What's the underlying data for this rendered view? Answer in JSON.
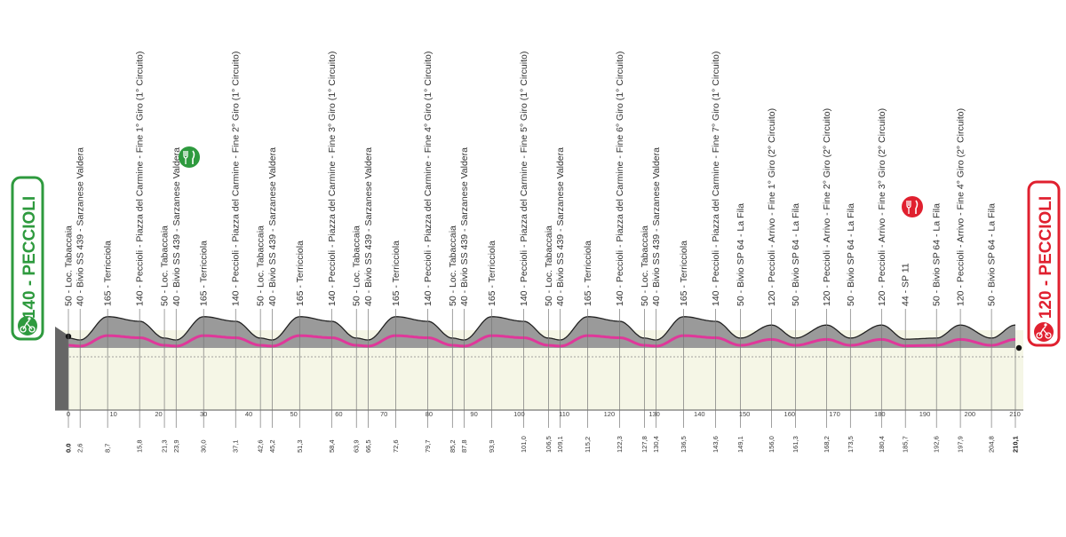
{
  "colors": {
    "start_badge": "#2e9a3e",
    "finish_badge": "#e0202f",
    "profile_fill": "#9a9a9a",
    "profile_dark": "#666666",
    "ground_fill": "#f5f6e6",
    "route_line": "#e0379a",
    "tick_line": "#777777"
  },
  "start": {
    "label": "140 - PECCIOLI",
    "icon": "cyclist-start-icon"
  },
  "finish": {
    "label": "120 - PECCIOLI",
    "icon": "cyclist-finish-icon"
  },
  "feed_zone": {
    "icon": "fork-knife-icon"
  },
  "chart_data": {
    "type": "area",
    "title": "",
    "xlabel": "",
    "ylabel": "",
    "xlim": [
      0,
      210.1
    ],
    "km_axis_ticks": [
      0,
      10,
      20,
      30,
      40,
      50,
      60,
      70,
      80,
      90,
      100,
      110,
      120,
      130,
      140,
      150,
      160,
      170,
      180,
      190,
      200,
      210
    ],
    "total_km_label": "210,1",
    "waypoints": [
      {
        "km": 0.0,
        "km_label": "0.0",
        "label": "50 - Loc. Tabaccaia"
      },
      {
        "km": 2.6,
        "km_label": "2,6",
        "label": "40 - Bivio SS 439 - Sarzanese Valdera"
      },
      {
        "km": 8.7,
        "km_label": "8,7",
        "label": "165 - Terricciola"
      },
      {
        "km": 15.8,
        "km_label": "15,8",
        "label": "140 - Peccioli - Piazza del Carmine - Fine 1° Giro (1° Circuito)"
      },
      {
        "km": 21.3,
        "km_label": "21,3",
        "label": "50 - Loc. Tabaccaia"
      },
      {
        "km": 23.9,
        "km_label": "23,9",
        "label": "40 - Bivio SS 439 - Sarzanese Valdera"
      },
      {
        "km": 30.0,
        "km_label": "30,0",
        "label": "165 - Terricciola"
      },
      {
        "km": 37.1,
        "km_label": "37,1",
        "label": "140 - Peccioli - Piazza del Carmine - Fine 2° Giro (1° Circuito)"
      },
      {
        "km": 42.6,
        "km_label": "42,6",
        "label": "50 - Loc. Tabaccaia"
      },
      {
        "km": 45.2,
        "km_label": "45,2",
        "label": "40 - Bivio SS 439 - Sarzanese Valdera"
      },
      {
        "km": 51.3,
        "km_label": "51,3",
        "label": "165 - Terricciola"
      },
      {
        "km": 58.4,
        "km_label": "58,4",
        "label": "140 - Peccioli - Piazza del Carmine - Fine 3° Giro (1° Circuito)"
      },
      {
        "km": 63.9,
        "km_label": "63,9",
        "label": "50 - Loc. Tabaccaia"
      },
      {
        "km": 66.5,
        "km_label": "66,5",
        "label": "40 - Bivio SS 439 - Sarzanese Valdera"
      },
      {
        "km": 72.6,
        "km_label": "72,6",
        "label": "165 - Terricciola"
      },
      {
        "km": 79.7,
        "km_label": "79,7",
        "label": "140 - Peccioli - Piazza del Carmine - Fine 4° Giro (1° Circuito)"
      },
      {
        "km": 85.2,
        "km_label": "85,2",
        "label": "50 - Loc. Tabaccaia"
      },
      {
        "km": 87.8,
        "km_label": "87,8",
        "label": "40 - Bivio SS 439 - Sarzanese Valdera"
      },
      {
        "km": 93.9,
        "km_label": "93,9",
        "label": "165 - Terricciola"
      },
      {
        "km": 101.0,
        "km_label": "101,0",
        "label": "140 - Peccioli - Piazza del Carmine - Fine 5° Giro (1° Circuito)"
      },
      {
        "km": 106.5,
        "km_label": "106,5",
        "label": "50 - Loc. Tabaccaia"
      },
      {
        "km": 109.1,
        "km_label": "109,1",
        "label": "40 - Bivio SS 439 - Sarzanese Valdera"
      },
      {
        "km": 115.2,
        "km_label": "115,2",
        "label": "165 - Terricciola"
      },
      {
        "km": 122.3,
        "km_label": "122,3",
        "label": "140 - Peccioli - Piazza del Carmine - Fine 6° Giro (1° Circuito)"
      },
      {
        "km": 127.8,
        "km_label": "127,8",
        "label": "50 - Loc. Tabaccaia"
      },
      {
        "km": 130.4,
        "km_label": "130,4",
        "label": "40 - Bivio SS 439 - Sarzanese Valdera"
      },
      {
        "km": 136.5,
        "km_label": "136,5",
        "label": "165 - Terricciola"
      },
      {
        "km": 143.6,
        "km_label": "143,6",
        "label": "140 - Peccioli - Piazza del Carmine - Fine 7° Giro (1° Circuito)"
      },
      {
        "km": 149.1,
        "km_label": "149,1",
        "label": "50 - Bivio SP 64 - La Fila"
      },
      {
        "km": 156.0,
        "km_label": "156,0",
        "label": "120 - Peccioli - Arrivo - Fine 1° Giro (2° Circuito)"
      },
      {
        "km": 161.3,
        "km_label": "161,3",
        "label": "50 - Bivio SP 64 - La Fila"
      },
      {
        "km": 168.2,
        "km_label": "168,2",
        "label": "120 - Peccioli - Arrivo - Fine 2° Giro (2° Circuito)"
      },
      {
        "km": 173.5,
        "km_label": "173,5",
        "label": "50 - Bivio SP 64 - La Fila"
      },
      {
        "km": 180.4,
        "km_label": "180,4",
        "label": "120 - Peccioli - Arrivo - Fine 3° Giro (2° Circuito)"
      },
      {
        "km": 185.7,
        "km_label": "185,7",
        "label": "44 - SP 11"
      },
      {
        "km": 192.6,
        "km_label": "192,6",
        "label": "50 - Bivio SP 64 - La Fila"
      },
      {
        "km": 197.9,
        "km_label": "197,9",
        "label": "120 - Peccioli - Arrivo - Fine 4° Giro (2° Circuito)"
      },
      {
        "km": 204.8,
        "km_label": "204,8",
        "label": "50 - Bivio SP 64 - La Fila"
      }
    ],
    "feed_zone_km": 23.9,
    "intermediate_sprint_km": 180.4
  }
}
